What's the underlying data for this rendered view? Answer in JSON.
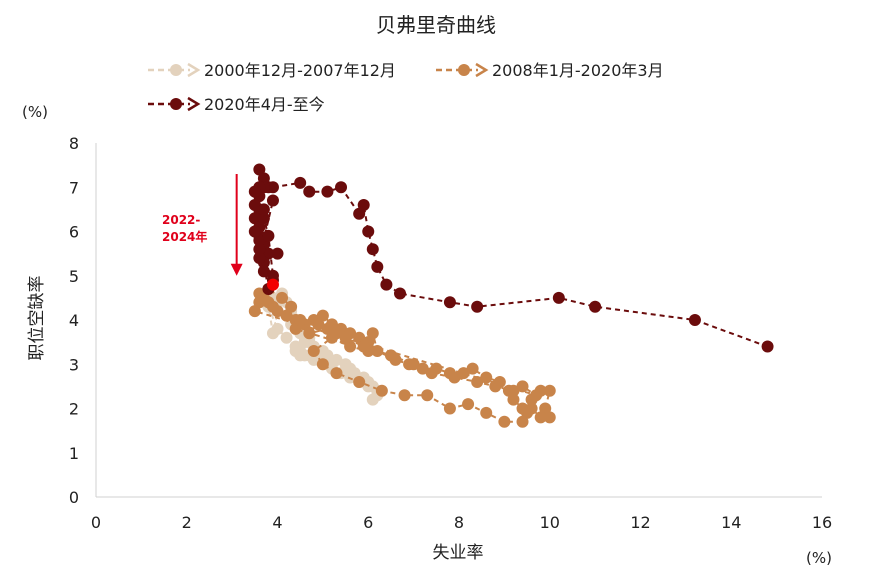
{
  "chart_data": {
    "type": "scatter",
    "title": "贝弗里奇曲线",
    "xlabel": "失业率",
    "ylabel": "职位空缺率",
    "x_unit": "(%)",
    "y_unit": "(%)",
    "xlim": [
      0,
      16
    ],
    "ylim": [
      0,
      8
    ],
    "x_ticks": [
      0,
      2,
      4,
      6,
      8,
      10,
      12,
      14,
      16
    ],
    "y_ticks": [
      0,
      1,
      2,
      3,
      4,
      5,
      6,
      7,
      8
    ],
    "grid": false,
    "legend_position": "top",
    "annotation": {
      "text_lines": [
        "2022-",
        "2024年"
      ],
      "color": "#e0001b",
      "arrow_x": 3.1,
      "arrow_y_from": 7.3,
      "arrow_y_to": 5.0
    },
    "highlight_point": {
      "x": 3.9,
      "y": 4.8,
      "color": "#f20000"
    },
    "series": [
      {
        "name": "2000年12月-2007年12月",
        "color": "#e3d2bd",
        "points": [
          [
            3.9,
            4.5
          ],
          [
            4.0,
            4.4
          ],
          [
            4.2,
            4.1
          ],
          [
            4.3,
            3.9
          ],
          [
            4.5,
            3.7
          ],
          [
            4.6,
            3.6
          ],
          [
            4.7,
            3.5
          ],
          [
            4.8,
            3.4
          ],
          [
            4.9,
            3.3
          ],
          [
            5.0,
            3.3
          ],
          [
            5.1,
            3.2
          ],
          [
            5.3,
            3.1
          ],
          [
            5.5,
            3.0
          ],
          [
            5.6,
            2.9
          ],
          [
            5.7,
            2.8
          ],
          [
            5.9,
            2.7
          ],
          [
            6.0,
            2.6
          ],
          [
            6.1,
            2.5
          ],
          [
            6.2,
            2.4
          ],
          [
            6.2,
            2.3
          ],
          [
            6.1,
            2.2
          ],
          [
            6.0,
            2.5
          ],
          [
            5.8,
            2.6
          ],
          [
            5.6,
            2.7
          ],
          [
            5.4,
            2.8
          ],
          [
            5.2,
            2.9
          ],
          [
            5.0,
            3.0
          ],
          [
            4.8,
            3.1
          ],
          [
            4.6,
            3.2
          ],
          [
            4.5,
            3.3
          ],
          [
            4.4,
            3.4
          ],
          [
            4.6,
            3.5
          ],
          [
            4.7,
            3.6
          ],
          [
            4.6,
            3.8
          ],
          [
            4.5,
            3.9
          ],
          [
            4.4,
            4.0
          ],
          [
            4.3,
            4.2
          ],
          [
            4.2,
            4.4
          ],
          [
            4.1,
            4.6
          ],
          [
            3.9,
            3.7
          ],
          [
            3.8,
            4.3
          ],
          [
            4.0,
            3.8
          ],
          [
            4.2,
            3.6
          ],
          [
            4.4,
            3.3
          ],
          [
            4.5,
            3.2
          ],
          [
            4.7,
            3.2
          ],
          [
            4.9,
            3.1
          ],
          [
            5.2,
            3.0
          ]
        ]
      },
      {
        "name": "2008年1月-2020年3月",
        "color": "#c8844a",
        "points": [
          [
            3.6,
            4.4
          ],
          [
            3.6,
            4.6
          ],
          [
            3.7,
            4.5
          ],
          [
            3.8,
            4.4
          ],
          [
            3.9,
            4.3
          ],
          [
            4.0,
            4.2
          ],
          [
            4.2,
            4.1
          ],
          [
            4.4,
            4.0
          ],
          [
            4.6,
            3.9
          ],
          [
            4.8,
            4.0
          ],
          [
            5.0,
            4.1
          ],
          [
            5.2,
            3.9
          ],
          [
            5.4,
            3.8
          ],
          [
            5.6,
            3.7
          ],
          [
            5.8,
            3.6
          ],
          [
            6.0,
            3.5
          ],
          [
            6.1,
            3.7
          ],
          [
            6.2,
            3.3
          ],
          [
            6.6,
            3.1
          ],
          [
            6.9,
            3.0
          ],
          [
            7.2,
            2.9
          ],
          [
            7.5,
            2.9
          ],
          [
            7.8,
            2.8
          ],
          [
            8.1,
            2.8
          ],
          [
            8.3,
            2.9
          ],
          [
            8.6,
            2.7
          ],
          [
            8.9,
            2.6
          ],
          [
            9.1,
            2.4
          ],
          [
            9.2,
            2.2
          ],
          [
            9.4,
            2.0
          ],
          [
            9.5,
            1.9
          ],
          [
            9.6,
            2.2
          ],
          [
            9.8,
            2.4
          ],
          [
            10.0,
            2.4
          ],
          [
            9.9,
            2.0
          ],
          [
            10.0,
            1.8
          ],
          [
            9.8,
            1.8
          ],
          [
            9.6,
            2.0
          ],
          [
            9.4,
            1.7
          ],
          [
            9.0,
            1.7
          ],
          [
            8.6,
            1.9
          ],
          [
            8.2,
            2.1
          ],
          [
            7.8,
            2.0
          ],
          [
            7.3,
            2.3
          ],
          [
            6.8,
            2.3
          ],
          [
            6.3,
            2.4
          ],
          [
            5.8,
            2.6
          ],
          [
            5.3,
            2.8
          ],
          [
            5.0,
            3.0
          ],
          [
            4.8,
            3.3
          ],
          [
            5.2,
            3.6
          ],
          [
            5.6,
            3.4
          ],
          [
            6.0,
            3.3
          ],
          [
            4.4,
            3.8
          ],
          [
            4.7,
            3.7
          ],
          [
            5.1,
            3.8
          ],
          [
            5.5,
            3.6
          ],
          [
            5.9,
            3.4
          ],
          [
            6.5,
            3.2
          ],
          [
            7.0,
            3.0
          ],
          [
            7.4,
            2.8
          ],
          [
            7.9,
            2.7
          ],
          [
            8.4,
            2.6
          ],
          [
            8.8,
            2.5
          ],
          [
            9.2,
            2.4
          ],
          [
            9.4,
            2.5
          ],
          [
            9.7,
            2.3
          ],
          [
            3.5,
            4.2
          ],
          [
            3.8,
            4.7
          ],
          [
            4.1,
            4.5
          ],
          [
            4.3,
            4.3
          ],
          [
            4.5,
            4.0
          ],
          [
            4.9,
            3.9
          ],
          [
            5.3,
            3.7
          ]
        ]
      },
      {
        "name": "2020年4月-至今",
        "color": "#6b0c0c",
        "points": [
          [
            14.8,
            3.4
          ],
          [
            13.2,
            4.0
          ],
          [
            11.0,
            4.3
          ],
          [
            10.2,
            4.5
          ],
          [
            8.4,
            4.3
          ],
          [
            7.8,
            4.4
          ],
          [
            6.7,
            4.6
          ],
          [
            6.4,
            4.8
          ],
          [
            6.2,
            5.2
          ],
          [
            6.1,
            5.6
          ],
          [
            6.0,
            6.0
          ],
          [
            5.9,
            6.6
          ],
          [
            5.8,
            6.4
          ],
          [
            5.4,
            7.0
          ],
          [
            5.1,
            6.9
          ],
          [
            4.7,
            6.9
          ],
          [
            4.5,
            7.1
          ],
          [
            3.9,
            7.0
          ],
          [
            3.8,
            7.0
          ],
          [
            3.7,
            7.2
          ],
          [
            3.6,
            7.4
          ],
          [
            3.7,
            7.0
          ],
          [
            3.6,
            6.8
          ],
          [
            3.6,
            6.5
          ],
          [
            3.5,
            6.3
          ],
          [
            3.6,
            6.1
          ],
          [
            3.6,
            5.9
          ],
          [
            3.7,
            5.7
          ],
          [
            3.8,
            5.5
          ],
          [
            3.7,
            5.3
          ],
          [
            3.7,
            5.1
          ],
          [
            3.9,
            4.9
          ],
          [
            3.8,
            4.7
          ],
          [
            3.6,
            5.8
          ],
          [
            3.5,
            6.6
          ],
          [
            3.6,
            7.0
          ],
          [
            3.5,
            6.9
          ],
          [
            3.5,
            6.0
          ],
          [
            3.7,
            6.3
          ],
          [
            3.8,
            5.9
          ],
          [
            3.9,
            5.0
          ],
          [
            3.6,
            5.4
          ],
          [
            3.9,
            6.7
          ],
          [
            3.7,
            6.5
          ],
          [
            3.6,
            5.6
          ],
          [
            4.0,
            5.5
          ]
        ]
      }
    ]
  }
}
